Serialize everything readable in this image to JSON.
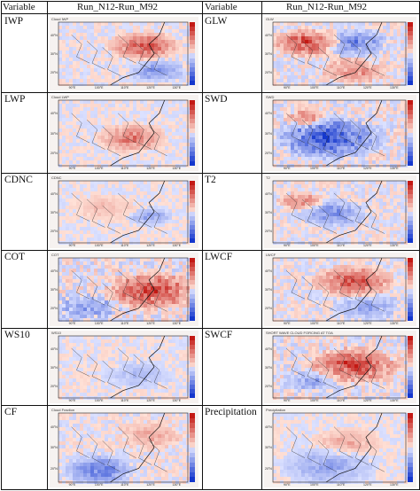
{
  "headers": {
    "left_variable": "Variable",
    "left_title": "Run_N12-Run_M92",
    "right_variable": "Variable",
    "right_title": "Run_N12-Run_M92"
  },
  "rows": [
    {
      "left": "IWP",
      "right": "GLW"
    },
    {
      "left": "LWP",
      "right": "SWD"
    },
    {
      "left": "CDNC",
      "right": "T2"
    },
    {
      "left": "COT",
      "right": "LWCF"
    },
    {
      "left": "WS10",
      "right": "SWCF"
    },
    {
      "left": "CF",
      "right": "Precipitation"
    }
  ],
  "map_titles": {
    "left": [
      "Cloud IWP",
      "Cloud LWP",
      "CDNC",
      "COT",
      "WS10",
      "Cloud Fraction"
    ],
    "right": [
      "GLW",
      "SWD",
      "T2",
      "LWCF",
      "SHORT WAVE CLOUD FORCING AT TOA",
      "Precipitation"
    ]
  },
  "lon_labels": [
    "90°E",
    "100°E",
    "110°E",
    "120°E",
    "130°E"
  ],
  "lat_labels": [
    "40°N",
    "30°N",
    "20°N"
  ],
  "colors": {
    "red": "#d62020",
    "blue": "#2040c8",
    "pale": "#f4d6d0",
    "ocean": "#f3b9b0"
  }
}
